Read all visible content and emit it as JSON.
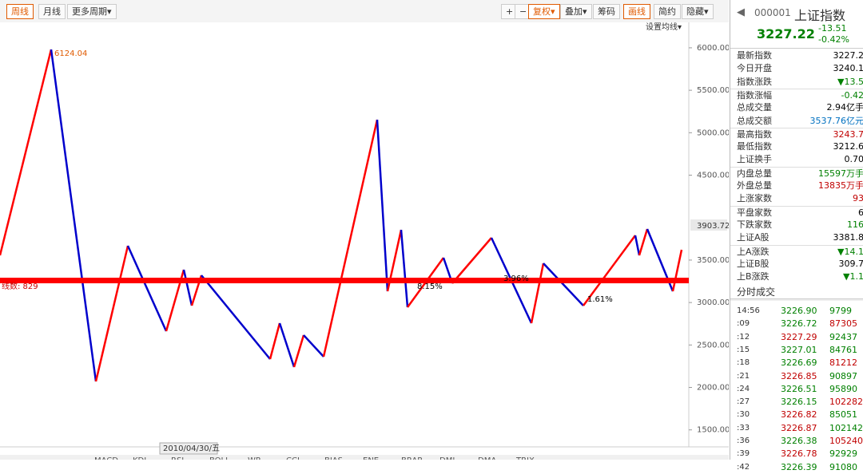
{
  "toolbar": {
    "left": [
      "周线",
      "月线",
      "更多周期▾"
    ],
    "right": [
      "+",
      "−",
      "复权▾",
      "叠加▾",
      "筹码",
      "画线",
      "简约",
      "隐藏▾"
    ],
    "ma_setting": "设置均线▾"
  },
  "chart": {
    "yaxis": {
      "ylim": [
        1300,
        6300
      ],
      "ticks": [
        {
          "value": 6000,
          "label": "6000.00"
        },
        {
          "value": 5500,
          "label": "5500.00"
        },
        {
          "value": 5000,
          "label": "5000.00"
        },
        {
          "value": 4500,
          "label": "4500.00"
        },
        {
          "value": 3500,
          "label": "3500.00"
        },
        {
          "value": 3000,
          "label": "3000.00"
        },
        {
          "value": 2500,
          "label": "2500.00"
        },
        {
          "value": 2000,
          "label": "2000.00"
        },
        {
          "value": 1500,
          "label": "1500.00"
        }
      ],
      "current": {
        "value": 3903.72,
        "label": "3903.72"
      }
    },
    "peak_label": "6124.04",
    "line_label": "线数: 829",
    "annotations": [
      "8.15%",
      "3.96%",
      "1.61%"
    ],
    "date_label": "2010/04/30/五",
    "indicators": [
      "MACD",
      "KDJ",
      "RSI",
      "BOLL",
      "WR",
      "CCI",
      "BIAS",
      "ENE",
      "BRAR",
      "DMI",
      "DMA",
      "TRIX"
    ]
  },
  "panel": {
    "code": "000001",
    "name": "上证指数",
    "price": "3227.22",
    "change": "-13.51",
    "pct": "-0.42%",
    "rows": [
      [
        "最新指数",
        "3227.2",
        "#000"
      ],
      [
        "今日开盘",
        "3240.1",
        "#000"
      ],
      [
        "指数涨跌",
        "▼13.5",
        "#008000"
      ],
      [
        "指数涨幅",
        "-0.42",
        "#008000"
      ],
      [
        "总成交量",
        "2.94亿手",
        "#000"
      ],
      [
        "总成交额",
        "3537.76亿元",
        "#0070c0"
      ],
      [
        "最高指数",
        "3243.7",
        "#c00000"
      ],
      [
        "最低指数",
        "3212.6",
        "#000"
      ],
      [
        "上证换手",
        "0.70",
        "#000"
      ],
      [
        "内盘总量",
        "15597万手",
        "#008000"
      ],
      [
        "外盘总量",
        "13835万手",
        "#c00000"
      ],
      [
        "上涨家数",
        "93",
        "#c00000"
      ],
      [
        "平盘家数",
        "6",
        "#000"
      ],
      [
        "下跌家数",
        "116",
        "#008000"
      ],
      [
        "上证A股",
        "3381.8",
        "#000"
      ],
      [
        "上A涨跌",
        "▼14.1",
        "#008000"
      ],
      [
        "上证B股",
        "309.7",
        "#000"
      ],
      [
        "上B涨跌",
        "▼1.1",
        "#008000"
      ]
    ],
    "ticks_title": "分时成交",
    "ticks": [
      [
        "14:56",
        "3226.90",
        "9799"
      ],
      [
        ":09",
        "3226.72",
        "87305"
      ],
      [
        ":12",
        "3227.29",
        "92437"
      ],
      [
        ":15",
        "3227.01",
        "84761"
      ],
      [
        ":18",
        "3226.69",
        "81212"
      ],
      [
        ":21",
        "3226.85",
        "90897"
      ],
      [
        ":24",
        "3226.51",
        "95890"
      ],
      [
        ":27",
        "3226.15",
        "102282"
      ],
      [
        ":30",
        "3226.82",
        "85051"
      ],
      [
        ":33",
        "3226.87",
        "102142"
      ],
      [
        ":36",
        "3226.38",
        "105240"
      ],
      [
        ":39",
        "3226.78",
        "92929"
      ],
      [
        ":42",
        "3226.39",
        "91080"
      ]
    ]
  }
}
